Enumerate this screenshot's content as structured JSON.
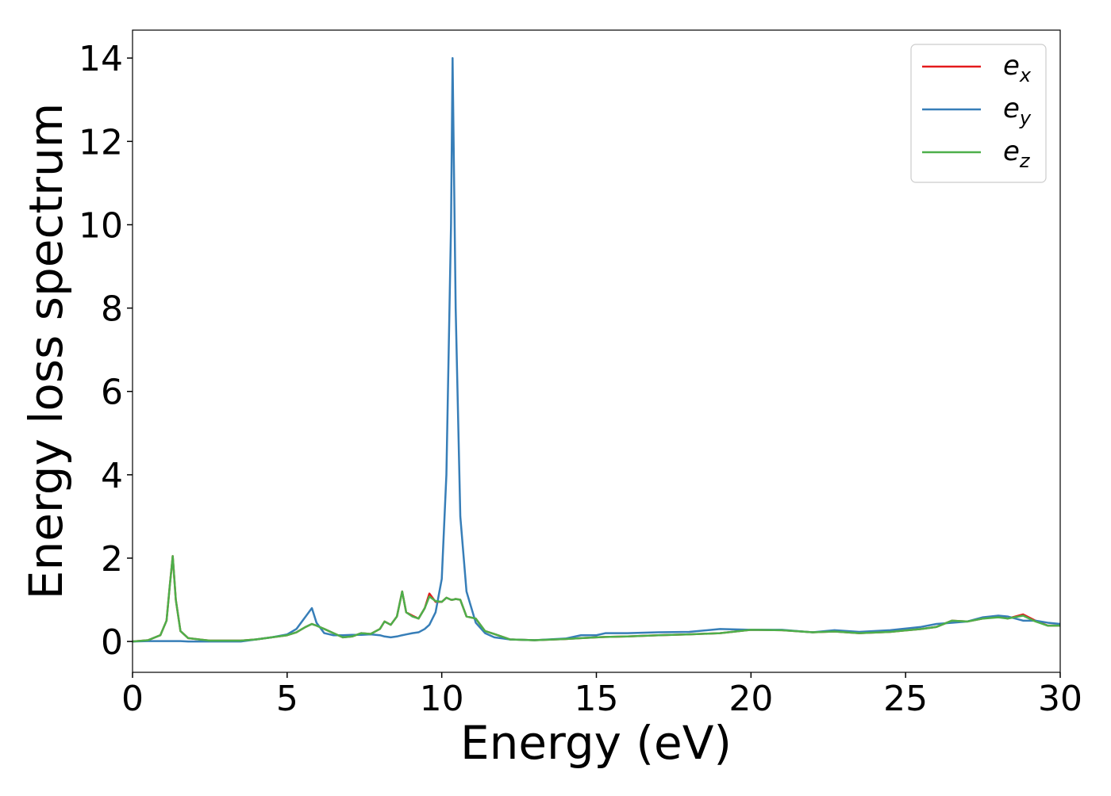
{
  "chart_data": {
    "type": "line",
    "xlabel": "Energy (eV)",
    "ylabel": "Energy loss spectrum",
    "x": [
      0,
      0.5,
      0.9,
      1.1,
      1.2,
      1.3,
      1.4,
      1.55,
      1.8,
      2.5,
      3.5,
      4,
      4.5,
      5,
      5.3,
      5.6,
      5.8,
      5.95,
      6.2,
      6.5,
      6.8,
      7.1,
      7.4,
      7.7,
      8.0,
      8.15,
      8.35,
      8.55,
      8.72,
      8.85,
      9.05,
      9.25,
      9.45,
      9.6,
      9.8,
      10.0,
      10.15,
      10.3,
      10.35,
      10.45,
      10.6,
      10.8,
      11.1,
      11.4,
      11.7,
      12.2,
      13,
      14,
      14.5,
      15,
      15.3,
      16,
      17,
      18,
      19,
      20,
      21,
      22,
      22.7,
      23.5,
      24.5,
      25.5,
      26,
      26.5,
      27,
      27.5,
      28,
      28.3,
      28.8,
      29.2,
      29.6,
      30
    ],
    "series": [
      {
        "name": "ex",
        "color": "#e41a1c",
        "values": [
          0,
          0.03,
          0.15,
          0.5,
          1.3,
          2.05,
          1.0,
          0.25,
          0.08,
          0.02,
          0.02,
          0.05,
          0.1,
          0.15,
          0.22,
          0.35,
          0.42,
          0.38,
          0.3,
          0.2,
          0.1,
          0.12,
          0.2,
          0.18,
          0.3,
          0.48,
          0.4,
          0.6,
          1.2,
          0.7,
          0.62,
          0.55,
          0.8,
          1.15,
          0.95,
          0.95,
          1.05,
          1.0,
          1.0,
          1.02,
          1.0,
          0.6,
          0.55,
          0.25,
          0.18,
          0.05,
          0.03,
          0.06,
          0.08,
          0.1,
          0.11,
          0.12,
          0.15,
          0.17,
          0.2,
          0.28,
          0.27,
          0.22,
          0.24,
          0.2,
          0.23,
          0.3,
          0.35,
          0.5,
          0.48,
          0.55,
          0.6,
          0.55,
          0.65,
          0.5,
          0.38,
          0.38
        ]
      },
      {
        "name": "ey",
        "color": "#377eb8",
        "values": [
          0,
          0.01,
          0.01,
          0.01,
          0.01,
          0.01,
          0.01,
          0.01,
          0.0,
          0.0,
          0.0,
          0.05,
          0.1,
          0.17,
          0.3,
          0.6,
          0.8,
          0.45,
          0.2,
          0.15,
          0.15,
          0.16,
          0.16,
          0.17,
          0.15,
          0.12,
          0.1,
          0.12,
          0.15,
          0.17,
          0.2,
          0.22,
          0.3,
          0.4,
          0.7,
          1.5,
          4.0,
          10.0,
          14.0,
          8.0,
          3.0,
          1.2,
          0.45,
          0.2,
          0.1,
          0.05,
          0.03,
          0.07,
          0.15,
          0.15,
          0.2,
          0.2,
          0.22,
          0.23,
          0.3,
          0.28,
          0.28,
          0.22,
          0.27,
          0.23,
          0.27,
          0.35,
          0.42,
          0.45,
          0.48,
          0.58,
          0.62,
          0.6,
          0.5,
          0.5,
          0.45,
          0.42
        ]
      },
      {
        "name": "ez",
        "color": "#4daf4a",
        "values": [
          0,
          0.03,
          0.15,
          0.5,
          1.3,
          2.05,
          1.0,
          0.25,
          0.08,
          0.02,
          0.02,
          0.05,
          0.1,
          0.15,
          0.22,
          0.35,
          0.42,
          0.38,
          0.3,
          0.2,
          0.1,
          0.12,
          0.2,
          0.18,
          0.3,
          0.48,
          0.4,
          0.6,
          1.2,
          0.7,
          0.6,
          0.55,
          0.8,
          1.08,
          0.97,
          0.95,
          1.05,
          1.0,
          1.0,
          1.02,
          1.0,
          0.6,
          0.55,
          0.25,
          0.18,
          0.05,
          0.03,
          0.06,
          0.08,
          0.1,
          0.11,
          0.12,
          0.15,
          0.17,
          0.2,
          0.28,
          0.27,
          0.22,
          0.24,
          0.2,
          0.23,
          0.3,
          0.35,
          0.5,
          0.48,
          0.55,
          0.58,
          0.55,
          0.62,
          0.48,
          0.38,
          0.38
        ]
      }
    ],
    "xlim": [
      0,
      30
    ],
    "xticks": [
      0,
      5,
      10,
      15,
      20,
      25,
      30
    ],
    "ylim": [
      -0.74,
      14.67
    ],
    "yticks": [
      0,
      2,
      4,
      6,
      8,
      10,
      12,
      14
    ],
    "legend": "upper right",
    "grid": false
  }
}
